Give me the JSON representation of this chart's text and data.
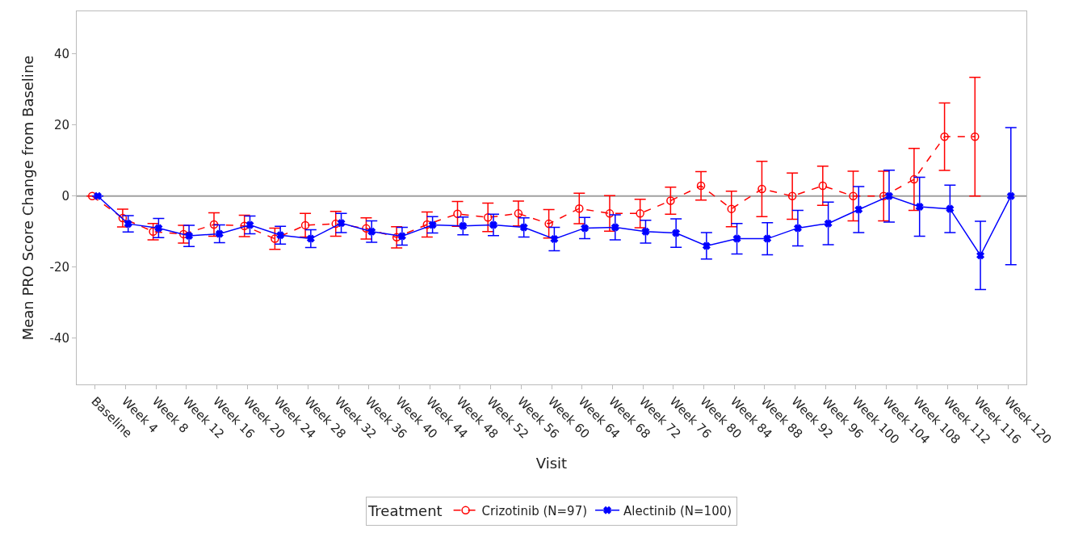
{
  "chart_data": {
    "type": "line",
    "xlabel": "Visit",
    "ylabel": "Mean PRO Score Change from Baseline",
    "legend_title": "Treatment",
    "legend": "bottom",
    "grid": false,
    "categories": [
      "Baseline",
      "Week 4",
      "Week 8",
      "Week 12",
      "Week 16",
      "Week 20",
      "Week 24",
      "Week 28",
      "Week 32",
      "Week 36",
      "Week 40",
      "Week 44",
      "Week 48",
      "Week 52",
      "Week 56",
      "Week 60",
      "Week 64",
      "Week 68",
      "Week 72",
      "Week 76",
      "Week 80",
      "Week 84",
      "Week 88",
      "Week 92",
      "Week 96",
      "Week 100",
      "Week 104",
      "Week 108",
      "Week 112",
      "Week 116",
      "Week 120"
    ],
    "ylim": [
      -53,
      52
    ],
    "yticks": [
      -40,
      -20,
      0,
      20,
      40
    ],
    "ref_lines": [
      {
        "axis": "y",
        "value": 0,
        "color": "#a0a0a0"
      }
    ],
    "series": [
      {
        "name": "Crizotinib (N=97)",
        "color": "#ff0000",
        "marker": "circle",
        "line_style": "dashed",
        "values": [
          0,
          -6.2,
          -10,
          -10.7,
          -8,
          -8.4,
          -12,
          -8.2,
          -7.8,
          -9.1,
          -11.6,
          -8,
          -5,
          -6,
          -4.9,
          -7.8,
          -3.5,
          -4.9,
          -4.9,
          -1.3,
          2.9,
          -3.6,
          2,
          0,
          2.9,
          0,
          0,
          4.7,
          16.7,
          16.7,
          null
        ],
        "errors": [
          null,
          2.5,
          2.3,
          2.5,
          3.3,
          3,
          3,
          3.3,
          3.5,
          3,
          3,
          3.5,
          3.5,
          4,
          3.5,
          4,
          4.3,
          5,
          4,
          3.8,
          4,
          5,
          7.8,
          6.5,
          5.5,
          7,
          7,
          8.7,
          9.5,
          16.7,
          null
        ]
      },
      {
        "name": "Alectinib (N=100)",
        "color": "#0000ff",
        "marker": "cross",
        "line_style": "solid",
        "values": [
          0,
          -7.8,
          -9,
          -11.2,
          -10.6,
          -8.1,
          -11,
          -12,
          -7.6,
          -10,
          -11.3,
          -8.1,
          -8.4,
          -8.1,
          -8.8,
          -12.1,
          -9,
          -8.8,
          -10,
          -10.4,
          -14,
          -12,
          -12,
          -9,
          -7.7,
          -3.8,
          0,
          -3,
          -3.6,
          -16.7,
          0
        ],
        "errors": [
          null,
          2.3,
          2.7,
          3,
          2.5,
          2.5,
          2.5,
          2.5,
          2.7,
          3,
          2.5,
          2.3,
          2.5,
          3,
          2.7,
          3.3,
          3,
          3.5,
          3.2,
          4,
          3.7,
          4.3,
          4.5,
          5,
          6,
          6.5,
          7.3,
          8.3,
          6.7,
          9.6,
          19.3
        ]
      }
    ]
  }
}
